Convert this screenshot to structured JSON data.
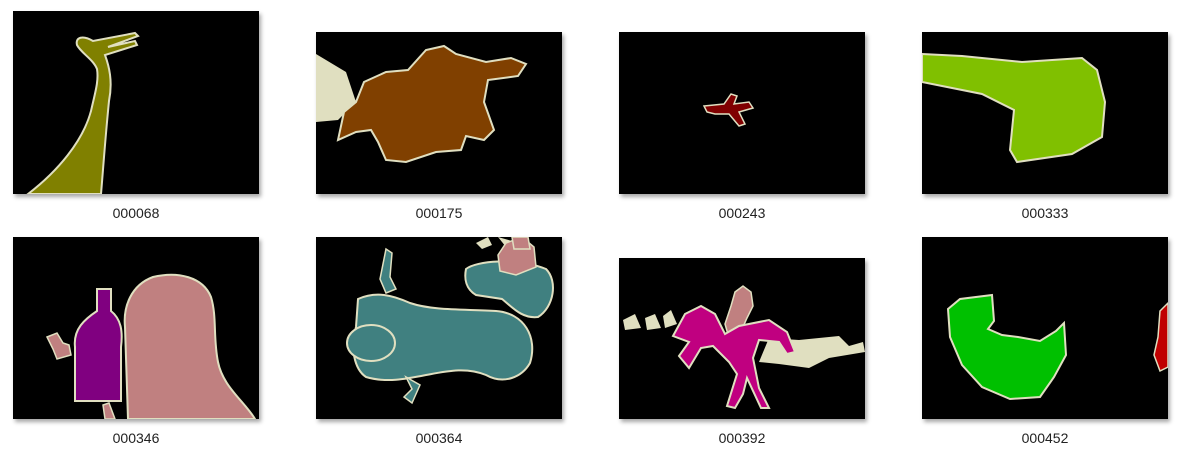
{
  "files": [
    {
      "name": "000068"
    },
    {
      "name": "000175"
    },
    {
      "name": "000243"
    },
    {
      "name": "000333"
    },
    {
      "name": "000346"
    },
    {
      "name": "000364"
    },
    {
      "name": "000392"
    },
    {
      "name": "000452"
    }
  ],
  "palette": {
    "background": "#000000",
    "outline": "#e0dfc0",
    "bird": "#808000",
    "dog": "#804000",
    "aeroplane": "#800000",
    "train_green": "#80c000",
    "bottle": "#800080",
    "person": "#c08080",
    "motorbike": "#408080",
    "horse": "#c00080",
    "sofa_green": "#00c000",
    "red": "#c00000",
    "void": "#e0dfc0"
  }
}
